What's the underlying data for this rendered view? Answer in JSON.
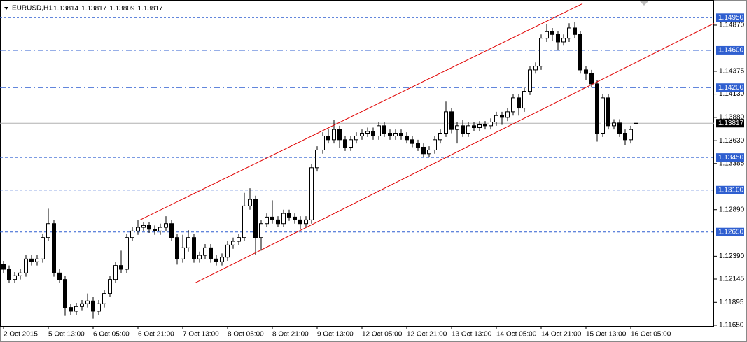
{
  "chart_data": {
    "type": "candlestick",
    "symbol": "EURUSD,H1",
    "categories": [
      "2 Oct 2015",
      null,
      null,
      null,
      null,
      null,
      null,
      null,
      "5 Oct 13:00",
      null,
      null,
      null,
      null,
      null,
      null,
      null,
      "6 Oct 05:00",
      null,
      null,
      null,
      null,
      null,
      null,
      null,
      "6 Oct 21:00",
      null,
      null,
      null,
      null,
      null,
      null,
      null,
      "7 Oct 13:00",
      null,
      null,
      null,
      null,
      null,
      null,
      null,
      "8 Oct 05:00",
      null,
      null,
      null,
      null,
      null,
      null,
      null,
      "8 Oct 21:00",
      null,
      null,
      null,
      null,
      null,
      null,
      null,
      "9 Oct 13:00",
      null,
      null,
      null,
      null,
      null,
      null,
      null,
      "12 Oct 05:00",
      null,
      null,
      null,
      null,
      null,
      null,
      null,
      "12 Oct 21:00",
      null,
      null,
      null,
      null,
      null,
      null,
      null,
      "13 Oct 13:00",
      null,
      null,
      null,
      null,
      null,
      null,
      null,
      "14 Oct 05:00",
      null,
      null,
      null,
      null,
      null,
      null,
      null,
      "14 Oct 21:00",
      null,
      null,
      null,
      null,
      null,
      null,
      null,
      "15 Oct 13:00",
      null,
      null,
      null,
      null,
      null,
      null,
      null,
      "16 Oct 05:00",
      null
    ],
    "open": [
      1.123,
      1.1225,
      1.1214,
      1.1218,
      1.1221,
      1.1236,
      1.1233,
      1.1236,
      1.1259,
      1.1274,
      1.1221,
      1.1214,
      1.1184,
      1.118,
      1.1185,
      1.1188,
      1.1191,
      1.118,
      1.1188,
      1.1199,
      1.1214,
      1.1229,
      1.1225,
      1.1259,
      1.1266,
      1.127,
      1.1272,
      1.1268,
      1.1266,
      1.127,
      1.1274,
      1.1259,
      1.1236,
      1.1248,
      1.1259,
      1.1236,
      1.124,
      1.1248,
      1.1236,
      1.1233,
      1.1238,
      1.1251,
      1.1255,
      1.1259,
      1.1293,
      1.13,
      1.1259,
      1.1274,
      1.1281,
      1.1278,
      1.1274,
      1.1285,
      1.1281,
      1.1278,
      1.1274,
      1.1278,
      1.1334,
      1.1353,
      1.1368,
      1.1364,
      1.1375,
      1.1364,
      1.1356,
      1.1364,
      1.1368,
      1.1371,
      1.1373,
      1.1368,
      1.1379,
      1.1371,
      1.1368,
      1.1371,
      1.1368,
      1.1364,
      1.136,
      1.1356,
      1.1349,
      1.1353,
      1.1364,
      1.1371,
      1.1394,
      1.1375,
      1.1379,
      1.1371,
      1.1379,
      1.1377,
      1.138,
      1.1379,
      1.1383,
      1.139,
      1.1388,
      1.1394,
      1.1409,
      1.1398,
      1.1416,
      1.1439,
      1.1443,
      1.1473,
      1.148,
      1.1477,
      1.1469,
      1.1473,
      1.1484,
      1.1477,
      1.1439,
      1.1435,
      1.1424,
      1.1371,
      1.1409,
      1.1379,
      1.1382,
      1.1371,
      1.1364,
      1.13814
    ],
    "high": [
      1.1234,
      1.1229,
      1.1222,
      1.1225,
      1.124,
      1.124,
      1.124,
      1.1263,
      1.129,
      1.1278,
      1.1225,
      1.1218,
      1.1188,
      1.1189,
      1.1192,
      1.1199,
      1.1195,
      1.1192,
      1.1203,
      1.1218,
      1.1233,
      1.1245,
      1.1263,
      1.127,
      1.1278,
      1.1276,
      1.1276,
      1.1272,
      1.1274,
      1.1282,
      1.1278,
      1.1263,
      1.1262,
      1.1267,
      1.1263,
      1.1244,
      1.1252,
      1.1252,
      1.124,
      1.1242,
      1.1255,
      1.1259,
      1.1263,
      1.1307,
      1.1312,
      1.1304,
      1.1278,
      1.1285,
      1.1299,
      1.1282,
      1.1289,
      1.1289,
      1.1285,
      1.1282,
      1.1282,
      1.1338,
      1.1357,
      1.1372,
      1.1376,
      1.1385,
      1.1379,
      1.1368,
      1.1368,
      1.1372,
      1.1375,
      1.1377,
      1.1377,
      1.1383,
      1.1383,
      1.1375,
      1.1375,
      1.1375,
      1.1372,
      1.1368,
      1.1364,
      1.136,
      1.1357,
      1.1368,
      1.1375,
      1.1405,
      1.1398,
      1.1383,
      1.1385,
      1.1383,
      1.1383,
      1.1384,
      1.1384,
      1.1387,
      1.1394,
      1.1394,
      1.1398,
      1.1413,
      1.1413,
      1.142,
      1.1443,
      1.1447,
      1.1477,
      1.1488,
      1.1484,
      1.1481,
      1.1477,
      1.1489,
      1.149,
      1.1481,
      1.1443,
      1.1439,
      1.1428,
      1.1413,
      1.1413,
      1.1386,
      1.1386,
      1.1375,
      1.1379,
      1.13817
    ],
    "low": [
      1.1221,
      1.121,
      1.121,
      1.1214,
      1.1217,
      1.1229,
      1.1229,
      1.1232,
      1.1255,
      1.1217,
      1.121,
      1.1175,
      1.1176,
      1.1176,
      1.1181,
      1.1184,
      1.1172,
      1.1176,
      1.1184,
      1.1195,
      1.121,
      1.1221,
      1.1221,
      1.1255,
      1.1262,
      1.1266,
      1.1264,
      1.1262,
      1.1262,
      1.1266,
      1.1255,
      1.123,
      1.1232,
      1.1244,
      1.1232,
      1.1232,
      1.1236,
      1.1232,
      1.1229,
      1.1229,
      1.1234,
      1.1247,
      1.1251,
      1.1255,
      1.1289,
      1.124,
      1.1245,
      1.127,
      1.1274,
      1.127,
      1.127,
      1.1277,
      1.1274,
      1.1268,
      1.127,
      1.1274,
      1.133,
      1.1349,
      1.136,
      1.136,
      1.1355,
      1.1352,
      1.1352,
      1.136,
      1.1364,
      1.1367,
      1.1364,
      1.1364,
      1.1367,
      1.1364,
      1.1364,
      1.1364,
      1.136,
      1.1356,
      1.1352,
      1.1345,
      1.1345,
      1.1349,
      1.136,
      1.1367,
      1.1371,
      1.136,
      1.1367,
      1.1367,
      1.1373,
      1.1373,
      1.1375,
      1.1375,
      1.1379,
      1.138,
      1.1384,
      1.139,
      1.139,
      1.1394,
      1.1412,
      1.1435,
      1.1439,
      1.1469,
      1.147,
      1.146,
      1.1465,
      1.1469,
      1.1473,
      1.1435,
      1.1428,
      1.142,
      1.1362,
      1.1367,
      1.1375,
      1.1375,
      1.1367,
      1.1358,
      1.136,
      1.13809
    ],
    "close": [
      1.1225,
      1.1214,
      1.1218,
      1.1221,
      1.1236,
      1.1233,
      1.1236,
      1.1259,
      1.1274,
      1.1221,
      1.1214,
      1.1184,
      1.118,
      1.1185,
      1.1188,
      1.1191,
      1.118,
      1.1188,
      1.1199,
      1.1214,
      1.1229,
      1.1225,
      1.1259,
      1.1266,
      1.127,
      1.1272,
      1.1268,
      1.1266,
      1.127,
      1.1274,
      1.1259,
      1.1236,
      1.1248,
      1.1259,
      1.1236,
      1.124,
      1.1248,
      1.1236,
      1.1233,
      1.1238,
      1.1251,
      1.1255,
      1.1259,
      1.1293,
      1.13,
      1.1259,
      1.1274,
      1.1281,
      1.1278,
      1.1274,
      1.1285,
      1.1281,
      1.1278,
      1.1274,
      1.1278,
      1.1334,
      1.1353,
      1.1368,
      1.1364,
      1.1375,
      1.1364,
      1.1356,
      1.1364,
      1.1368,
      1.1371,
      1.1373,
      1.1368,
      1.1379,
      1.1371,
      1.1368,
      1.1371,
      1.1368,
      1.1364,
      1.136,
      1.1356,
      1.1349,
      1.1353,
      1.1364,
      1.1371,
      1.1394,
      1.1375,
      1.1379,
      1.1371,
      1.1379,
      1.1377,
      1.138,
      1.1379,
      1.1383,
      1.139,
      1.1388,
      1.1394,
      1.1409,
      1.1398,
      1.1416,
      1.1439,
      1.1443,
      1.1473,
      1.148,
      1.1477,
      1.1469,
      1.1473,
      1.1484,
      1.1477,
      1.1439,
      1.1435,
      1.1424,
      1.1371,
      1.1409,
      1.1379,
      1.1382,
      1.1371,
      1.1364,
      1.1375,
      1.13817
    ],
    "ylim": [
      1.11642,
      1.1514
    ],
    "yticks": [
      {
        "value": 1.1487,
        "label": "1.14870"
      },
      1.14375,
      {
        "value": 1.1413,
        "label": "1.14130"
      },
      {
        "value": 1.1388,
        "label": "1.13880"
      },
      {
        "value": 1.1363,
        "label": "1.13630"
      },
      1.13385,
      {
        "value": 1.1289,
        "label": "1.12890"
      },
      {
        "value": 1.1239,
        "label": "1.12390"
      },
      1.12145,
      1.11895,
      {
        "value": 1.1165,
        "label": "1.11650"
      }
    ],
    "levels": [
      {
        "value": 1.1495,
        "label": "1.14950",
        "style": "dotted"
      },
      {
        "value": 1.146,
        "label": "1.14600",
        "style": "dashdot"
      },
      {
        "value": 1.142,
        "label": "1.14200",
        "style": "dashdot"
      },
      {
        "value": 1.1345,
        "label": "1.13450",
        "style": "dashed"
      },
      {
        "value": 1.131,
        "label": "1.13100",
        "style": "dashed"
      },
      {
        "value": 1.1265,
        "label": "1.12650",
        "style": "dashed"
      }
    ],
    "level_color": "#2f5fd0",
    "current_price": 1.13817,
    "channel": [
      {
        "points": [
          [
            24.375,
            1.1278
          ],
          [
            103.375,
            1.151
          ]
        ],
        "color": "#e00000"
      },
      {
        "points": [
          [
            34.125,
            1.121
          ],
          [
            126.875,
            1.1489
          ]
        ],
        "color": "#e00000"
      }
    ],
    "bull_color": "#ffffff",
    "bear_color": "#000000"
  }
}
